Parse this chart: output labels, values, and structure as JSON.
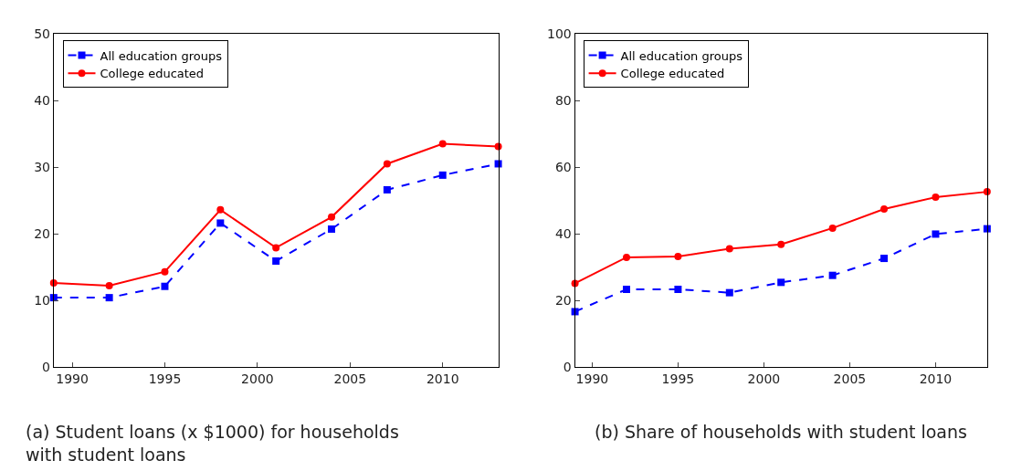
{
  "chart_data": [
    {
      "type": "line",
      "annotations": [
        "(a) Student loans (x $1000) for households with student loans"
      ],
      "x": [
        1989,
        1992,
        1995,
        1998,
        2001,
        2004,
        2007,
        2010,
        2013
      ],
      "xlim": [
        1989,
        2013
      ],
      "xticks": [
        1990,
        1995,
        2000,
        2005,
        2010
      ],
      "ylim": [
        0,
        50
      ],
      "yticks": [
        0,
        10,
        20,
        30,
        40,
        50
      ],
      "legend": "top left",
      "series": [
        {
          "name": "All education groups",
          "color": "#0000ff",
          "marker": "square",
          "line_style": "dashed",
          "values": [
            10.4,
            10.4,
            12.1,
            21.6,
            15.9,
            20.7,
            26.6,
            28.8,
            30.5
          ]
        },
        {
          "name": "College educated",
          "color": "#ff0000",
          "marker": "circle",
          "line_style": "solid",
          "values": [
            12.6,
            12.2,
            14.3,
            23.6,
            17.9,
            22.5,
            30.5,
            33.5,
            33.1
          ]
        }
      ]
    },
    {
      "type": "line",
      "annotations": [
        "(b) Share of households with student loans"
      ],
      "x": [
        1989,
        1992,
        1995,
        1998,
        2001,
        2004,
        2007,
        2010,
        2013
      ],
      "xlim": [
        1989,
        2013
      ],
      "xticks": [
        1990,
        1995,
        2000,
        2005,
        2010
      ],
      "ylim": [
        0,
        100
      ],
      "yticks": [
        0,
        20,
        40,
        60,
        80,
        100
      ],
      "legend": "top left",
      "series": [
        {
          "name": "All education groups",
          "color": "#0000ff",
          "marker": "square",
          "line_style": "dashed",
          "values": [
            16.6,
            23.3,
            23.3,
            22.3,
            25.4,
            27.5,
            32.6,
            39.9,
            41.5
          ]
        },
        {
          "name": "College educated",
          "color": "#ff0000",
          "marker": "circle",
          "line_style": "solid",
          "values": [
            25.1,
            32.9,
            33.2,
            35.5,
            36.8,
            41.7,
            47.4,
            51.0,
            52.6
          ]
        }
      ]
    }
  ]
}
